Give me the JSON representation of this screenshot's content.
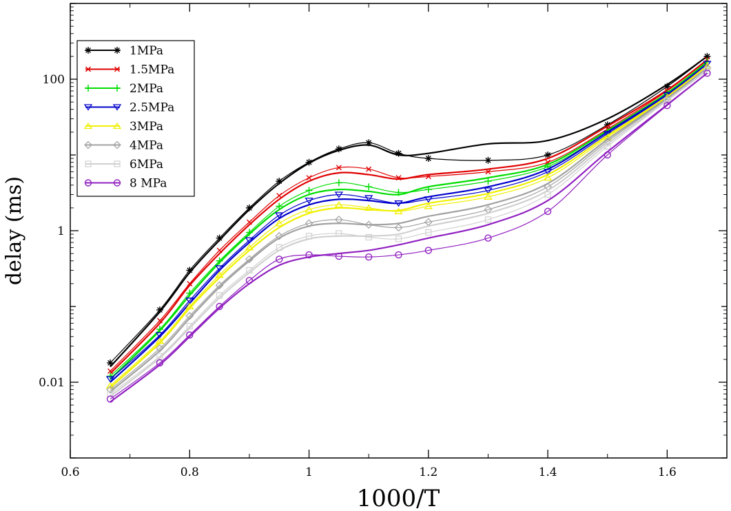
{
  "chart_data": {
    "type": "line",
    "title": "",
    "xlabel": "1000/T",
    "ylabel": "delay (ms)",
    "xlim": [
      0.6,
      1.7
    ],
    "ylim": [
      0.001,
      1000
    ],
    "yscale": "log",
    "grid": false,
    "legend_position": "top-left",
    "x_ticks": [
      0.6,
      0.8,
      1.0,
      1.2,
      1.4,
      1.6
    ],
    "x_tick_labels": [
      "0.6",
      "0.8",
      "1",
      "1.2",
      "1.4",
      "1.6"
    ],
    "y_ticks": [
      0.01,
      1,
      100
    ],
    "y_tick_labels": [
      "0.01",
      "1",
      "100"
    ],
    "series": [
      {
        "name": "1MPa",
        "color": "#000000",
        "marker": "star",
        "symbols": [
          [
            0.667,
            0.018
          ],
          [
            0.75,
            0.09
          ],
          [
            0.8,
            0.3
          ],
          [
            0.85,
            0.8
          ],
          [
            0.9,
            2.0
          ],
          [
            0.95,
            4.5
          ],
          [
            1.0,
            8.0
          ],
          [
            1.05,
            12.0
          ],
          [
            1.1,
            14.5
          ],
          [
            1.15,
            10.5
          ],
          [
            1.2,
            9.0
          ],
          [
            1.3,
            8.5
          ],
          [
            1.4,
            10.0
          ],
          [
            1.5,
            25.0
          ],
          [
            1.6,
            80.0
          ],
          [
            1.667,
            200.0
          ]
        ],
        "model": [
          [
            0.667,
            0.016
          ],
          [
            0.75,
            0.085
          ],
          [
            0.8,
            0.28
          ],
          [
            0.85,
            0.75
          ],
          [
            0.9,
            1.9
          ],
          [
            0.95,
            4.2
          ],
          [
            1.0,
            7.8
          ],
          [
            1.05,
            11.5
          ],
          [
            1.1,
            13.5
          ],
          [
            1.15,
            10.0
          ],
          [
            1.2,
            10.5
          ],
          [
            1.3,
            14.0
          ],
          [
            1.4,
            15.5
          ],
          [
            1.5,
            30.0
          ],
          [
            1.6,
            85.0
          ],
          [
            1.667,
            200.0
          ]
        ]
      },
      {
        "name": "1.5MPa",
        "color": "#e00000",
        "marker": "x",
        "symbols": [
          [
            0.667,
            0.014
          ],
          [
            0.75,
            0.065
          ],
          [
            0.8,
            0.2
          ],
          [
            0.85,
            0.55
          ],
          [
            0.9,
            1.3
          ],
          [
            0.95,
            2.9
          ],
          [
            1.0,
            5.0
          ],
          [
            1.05,
            6.8
          ],
          [
            1.1,
            6.5
          ],
          [
            1.15,
            5.0
          ],
          [
            1.2,
            5.2
          ],
          [
            1.3,
            6.0
          ],
          [
            1.4,
            8.0
          ],
          [
            1.5,
            22.0
          ],
          [
            1.6,
            70.0
          ],
          [
            1.667,
            180.0
          ]
        ],
        "model": [
          [
            0.667,
            0.013
          ],
          [
            0.75,
            0.06
          ],
          [
            0.8,
            0.19
          ],
          [
            0.85,
            0.5
          ],
          [
            0.9,
            1.2
          ],
          [
            0.95,
            2.6
          ],
          [
            1.0,
            4.5
          ],
          [
            1.05,
            5.8
          ],
          [
            1.1,
            5.5
          ],
          [
            1.15,
            4.8
          ],
          [
            1.2,
            5.5
          ],
          [
            1.3,
            6.5
          ],
          [
            1.4,
            9.0
          ],
          [
            1.5,
            24.0
          ],
          [
            1.6,
            72.0
          ],
          [
            1.667,
            180.0
          ]
        ]
      },
      {
        "name": "2MPa",
        "color": "#00dd00",
        "marker": "plus",
        "symbols": [
          [
            0.667,
            0.012
          ],
          [
            0.75,
            0.05
          ],
          [
            0.8,
            0.15
          ],
          [
            0.85,
            0.4
          ],
          [
            0.9,
            0.95
          ],
          [
            0.95,
            2.1
          ],
          [
            1.0,
            3.4
          ],
          [
            1.05,
            4.3
          ],
          [
            1.1,
            3.8
          ],
          [
            1.15,
            3.2
          ],
          [
            1.2,
            3.5
          ],
          [
            1.3,
            4.5
          ],
          [
            1.4,
            7.0
          ],
          [
            1.5,
            20.0
          ],
          [
            1.6,
            65.0
          ],
          [
            1.667,
            170.0
          ]
        ],
        "model": [
          [
            0.667,
            0.011
          ],
          [
            0.75,
            0.048
          ],
          [
            0.8,
            0.14
          ],
          [
            0.85,
            0.38
          ],
          [
            0.9,
            0.9
          ],
          [
            0.95,
            1.9
          ],
          [
            1.0,
            3.0
          ],
          [
            1.05,
            3.5
          ],
          [
            1.1,
            3.3
          ],
          [
            1.15,
            3.0
          ],
          [
            1.2,
            3.8
          ],
          [
            1.3,
            5.0
          ],
          [
            1.4,
            7.5
          ],
          [
            1.5,
            21.0
          ],
          [
            1.6,
            66.0
          ],
          [
            1.667,
            170.0
          ]
        ]
      },
      {
        "name": "2.5MPa",
        "color": "#0000cc",
        "marker": "triangle-down",
        "symbols": [
          [
            0.667,
            0.011
          ],
          [
            0.75,
            0.042
          ],
          [
            0.8,
            0.12
          ],
          [
            0.85,
            0.32
          ],
          [
            0.9,
            0.75
          ],
          [
            0.95,
            1.6
          ],
          [
            1.0,
            2.5
          ],
          [
            1.05,
            3.0
          ],
          [
            1.1,
            2.7
          ],
          [
            1.15,
            2.3
          ],
          [
            1.2,
            2.6
          ],
          [
            1.3,
            3.4
          ],
          [
            1.4,
            6.0
          ],
          [
            1.5,
            19.0
          ],
          [
            1.6,
            62.0
          ],
          [
            1.667,
            160.0
          ]
        ],
        "model": [
          [
            0.667,
            0.01
          ],
          [
            0.75,
            0.04
          ],
          [
            0.8,
            0.11
          ],
          [
            0.85,
            0.3
          ],
          [
            0.9,
            0.7
          ],
          [
            0.95,
            1.45
          ],
          [
            1.0,
            2.2
          ],
          [
            1.05,
            2.6
          ],
          [
            1.1,
            2.5
          ],
          [
            1.15,
            2.3
          ],
          [
            1.2,
            2.8
          ],
          [
            1.3,
            3.8
          ],
          [
            1.4,
            6.5
          ],
          [
            1.5,
            20.0
          ],
          [
            1.6,
            63.0
          ],
          [
            1.667,
            160.0
          ]
        ]
      },
      {
        "name": "3MPa",
        "color": "#f0f000",
        "marker": "triangle-up",
        "symbols": [
          [
            0.667,
            0.009
          ],
          [
            0.75,
            0.035
          ],
          [
            0.8,
            0.1
          ],
          [
            0.85,
            0.26
          ],
          [
            0.9,
            0.6
          ],
          [
            0.95,
            1.25
          ],
          [
            1.0,
            1.9
          ],
          [
            1.05,
            2.2
          ],
          [
            1.1,
            2.0
          ],
          [
            1.15,
            1.8
          ],
          [
            1.2,
            2.1
          ],
          [
            1.3,
            2.8
          ],
          [
            1.4,
            5.0
          ],
          [
            1.5,
            17.0
          ],
          [
            1.6,
            58.0
          ],
          [
            1.667,
            150.0
          ]
        ],
        "model": [
          [
            0.667,
            0.0085
          ],
          [
            0.75,
            0.033
          ],
          [
            0.8,
            0.095
          ],
          [
            0.85,
            0.24
          ],
          [
            0.9,
            0.55
          ],
          [
            0.95,
            1.1
          ],
          [
            1.0,
            1.7
          ],
          [
            1.05,
            2.0
          ],
          [
            1.1,
            1.9
          ],
          [
            1.15,
            1.85
          ],
          [
            1.2,
            2.3
          ],
          [
            1.3,
            3.1
          ],
          [
            1.4,
            5.5
          ],
          [
            1.5,
            18.0
          ],
          [
            1.6,
            59.0
          ],
          [
            1.667,
            150.0
          ]
        ]
      },
      {
        "name": "4MPa",
        "color": "#a0a0a0",
        "marker": "diamond",
        "symbols": [
          [
            0.667,
            0.008
          ],
          [
            0.75,
            0.028
          ],
          [
            0.8,
            0.075
          ],
          [
            0.85,
            0.19
          ],
          [
            0.9,
            0.42
          ],
          [
            0.95,
            0.85
          ],
          [
            1.0,
            1.25
          ],
          [
            1.05,
            1.4
          ],
          [
            1.1,
            1.2
          ],
          [
            1.15,
            1.1
          ],
          [
            1.2,
            1.3
          ],
          [
            1.3,
            1.9
          ],
          [
            1.4,
            3.8
          ],
          [
            1.5,
            15.0
          ],
          [
            1.6,
            55.0
          ],
          [
            1.667,
            140.0
          ]
        ],
        "model": [
          [
            0.667,
            0.0075
          ],
          [
            0.75,
            0.026
          ],
          [
            0.8,
            0.07
          ],
          [
            0.85,
            0.18
          ],
          [
            0.9,
            0.4
          ],
          [
            0.95,
            0.8
          ],
          [
            1.0,
            1.15
          ],
          [
            1.05,
            1.25
          ],
          [
            1.1,
            1.2
          ],
          [
            1.15,
            1.25
          ],
          [
            1.2,
            1.55
          ],
          [
            1.3,
            2.2
          ],
          [
            1.4,
            4.2
          ],
          [
            1.5,
            16.0
          ],
          [
            1.6,
            56.0
          ],
          [
            1.667,
            140.0
          ]
        ]
      },
      {
        "name": "6MPa",
        "color": "#d0d0d0",
        "marker": "square",
        "symbols": [
          [
            0.667,
            0.007
          ],
          [
            0.75,
            0.022
          ],
          [
            0.8,
            0.055
          ],
          [
            0.85,
            0.14
          ],
          [
            0.9,
            0.3
          ],
          [
            0.95,
            0.6
          ],
          [
            1.0,
            0.85
          ],
          [
            1.05,
            0.92
          ],
          [
            1.1,
            0.82
          ],
          [
            1.15,
            0.78
          ],
          [
            1.2,
            0.95
          ],
          [
            1.3,
            1.4
          ],
          [
            1.4,
            3.0
          ],
          [
            1.5,
            13.0
          ],
          [
            1.6,
            52.0
          ],
          [
            1.667,
            130.0
          ]
        ],
        "model": [
          [
            0.667,
            0.0065
          ],
          [
            0.75,
            0.021
          ],
          [
            0.8,
            0.052
          ],
          [
            0.85,
            0.13
          ],
          [
            0.9,
            0.28
          ],
          [
            0.95,
            0.55
          ],
          [
            1.0,
            0.78
          ],
          [
            1.05,
            0.85
          ],
          [
            1.1,
            0.85
          ],
          [
            1.15,
            0.9
          ],
          [
            1.2,
            1.15
          ],
          [
            1.3,
            1.7
          ],
          [
            1.4,
            3.4
          ],
          [
            1.5,
            14.0
          ],
          [
            1.6,
            53.0
          ],
          [
            1.667,
            130.0
          ]
        ]
      },
      {
        "name": "8 MPa",
        "color": "#9020c0",
        "marker": "circle",
        "symbols": [
          [
            0.667,
            0.006
          ],
          [
            0.75,
            0.018
          ],
          [
            0.8,
            0.042
          ],
          [
            0.85,
            0.1
          ],
          [
            0.9,
            0.22
          ],
          [
            0.95,
            0.42
          ],
          [
            1.0,
            0.48
          ],
          [
            1.05,
            0.46
          ],
          [
            1.1,
            0.45
          ],
          [
            1.15,
            0.48
          ],
          [
            1.2,
            0.55
          ],
          [
            1.3,
            0.8
          ],
          [
            1.4,
            1.8
          ],
          [
            1.5,
            10.0
          ],
          [
            1.6,
            45.0
          ],
          [
            1.667,
            120.0
          ]
        ],
        "model": [
          [
            0.667,
            0.0055
          ],
          [
            0.75,
            0.017
          ],
          [
            0.8,
            0.04
          ],
          [
            0.85,
            0.095
          ],
          [
            0.9,
            0.2
          ],
          [
            0.95,
            0.35
          ],
          [
            1.0,
            0.45
          ],
          [
            1.05,
            0.5
          ],
          [
            1.1,
            0.55
          ],
          [
            1.15,
            0.65
          ],
          [
            1.2,
            0.8
          ],
          [
            1.3,
            1.2
          ],
          [
            1.4,
            2.5
          ],
          [
            1.5,
            11.0
          ],
          [
            1.6,
            46.0
          ],
          [
            1.667,
            120.0
          ]
        ]
      }
    ]
  }
}
